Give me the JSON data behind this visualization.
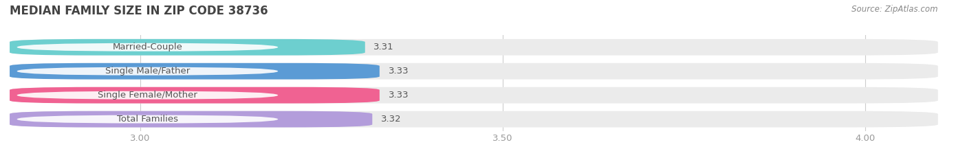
{
  "title": "MEDIAN FAMILY SIZE IN ZIP CODE 38736",
  "source": "Source: ZipAtlas.com",
  "categories": [
    "Married-Couple",
    "Single Male/Father",
    "Single Female/Mother",
    "Total Families"
  ],
  "values": [
    3.31,
    3.33,
    3.33,
    3.32
  ],
  "bar_colors": [
    "#6dcfcf",
    "#5b9bd5",
    "#f06292",
    "#b39ddb"
  ],
  "bar_bg_color": "#ebebeb",
  "xlim_left": 2.82,
  "xlim_right": 4.1,
  "xticks": [
    3.0,
    3.5,
    4.0
  ],
  "bar_height": 0.68,
  "bar_gap": 0.32,
  "label_fontsize": 9.5,
  "value_fontsize": 9.5,
  "title_fontsize": 12,
  "source_fontsize": 8.5,
  "background_color": "#ffffff",
  "text_color": "#555555",
  "tick_color": "#999999",
  "grid_color": "#cccccc"
}
